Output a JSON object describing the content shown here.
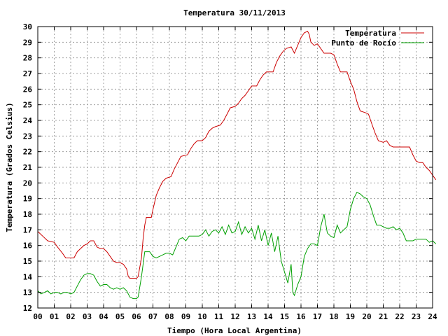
{
  "chart_data": {
    "type": "line",
    "title": "Temperatura 30/11/2013",
    "xlabel": "Tiempo (Hora Local Argentina)",
    "ylabel": "Temperatura (Grados Celsius)",
    "xlim": [
      0,
      24
    ],
    "ylim": [
      12,
      30
    ],
    "x_ticks": [
      "00",
      "01",
      "02",
      "03",
      "04",
      "05",
      "06",
      "07",
      "08",
      "09",
      "10",
      "11",
      "12",
      "13",
      "14",
      "15",
      "16",
      "17",
      "18",
      "19",
      "20",
      "21",
      "22",
      "23",
      "24"
    ],
    "y_ticks": [
      "12",
      "13",
      "14",
      "15",
      "16",
      "17",
      "18",
      "19",
      "20",
      "21",
      "22",
      "23",
      "24",
      "25",
      "26",
      "27",
      "28",
      "29",
      "30"
    ],
    "grid": true,
    "legend_position": "top-right",
    "series": [
      {
        "name": "Temperatura",
        "color": "#cc0000",
        "points": [
          [
            0.0,
            16.9
          ],
          [
            0.3,
            16.6
          ],
          [
            0.6,
            16.3
          ],
          [
            1.0,
            16.2
          ],
          [
            1.2,
            15.9
          ],
          [
            1.5,
            15.5
          ],
          [
            1.7,
            15.2
          ],
          [
            2.0,
            15.2
          ],
          [
            2.2,
            15.2
          ],
          [
            2.4,
            15.6
          ],
          [
            2.6,
            15.8
          ],
          [
            2.8,
            16.0
          ],
          [
            3.0,
            16.1
          ],
          [
            3.2,
            16.3
          ],
          [
            3.4,
            16.3
          ],
          [
            3.6,
            15.9
          ],
          [
            3.8,
            15.8
          ],
          [
            4.0,
            15.8
          ],
          [
            4.2,
            15.6
          ],
          [
            4.4,
            15.3
          ],
          [
            4.6,
            15.0
          ],
          [
            4.8,
            14.9
          ],
          [
            5.0,
            14.9
          ],
          [
            5.2,
            14.8
          ],
          [
            5.4,
            14.5
          ],
          [
            5.5,
            14.0
          ],
          [
            5.6,
            13.9
          ],
          [
            5.8,
            13.9
          ],
          [
            6.0,
            13.9
          ],
          [
            6.1,
            14.0
          ],
          [
            6.3,
            15.2
          ],
          [
            6.4,
            16.4
          ],
          [
            6.5,
            17.3
          ],
          [
            6.6,
            17.8
          ],
          [
            6.9,
            17.8
          ],
          [
            7.0,
            18.3
          ],
          [
            7.2,
            19.2
          ],
          [
            7.4,
            19.7
          ],
          [
            7.6,
            20.1
          ],
          [
            7.8,
            20.3
          ],
          [
            8.1,
            20.4
          ],
          [
            8.3,
            20.9
          ],
          [
            8.5,
            21.3
          ],
          [
            8.7,
            21.7
          ],
          [
            9.1,
            21.8
          ],
          [
            9.3,
            22.2
          ],
          [
            9.5,
            22.5
          ],
          [
            9.7,
            22.7
          ],
          [
            10.0,
            22.7
          ],
          [
            10.2,
            22.9
          ],
          [
            10.4,
            23.3
          ],
          [
            10.6,
            23.5
          ],
          [
            10.8,
            23.6
          ],
          [
            11.1,
            23.7
          ],
          [
            11.3,
            24.0
          ],
          [
            11.5,
            24.4
          ],
          [
            11.7,
            24.8
          ],
          [
            12.0,
            24.9
          ],
          [
            12.2,
            25.1
          ],
          [
            12.4,
            25.4
          ],
          [
            12.6,
            25.6
          ],
          [
            12.8,
            25.9
          ],
          [
            13.0,
            26.2
          ],
          [
            13.3,
            26.2
          ],
          [
            13.5,
            26.6
          ],
          [
            13.7,
            26.9
          ],
          [
            13.9,
            27.1
          ],
          [
            14.3,
            27.1
          ],
          [
            14.5,
            27.7
          ],
          [
            14.7,
            28.1
          ],
          [
            14.9,
            28.4
          ],
          [
            15.1,
            28.6
          ],
          [
            15.4,
            28.7
          ],
          [
            15.6,
            28.3
          ],
          [
            15.8,
            28.8
          ],
          [
            16.0,
            29.3
          ],
          [
            16.2,
            29.6
          ],
          [
            16.4,
            29.7
          ],
          [
            16.5,
            29.5
          ],
          [
            16.6,
            29.0
          ],
          [
            16.8,
            28.8
          ],
          [
            17.0,
            28.9
          ],
          [
            17.2,
            28.6
          ],
          [
            17.4,
            28.3
          ],
          [
            17.8,
            28.3
          ],
          [
            18.0,
            28.2
          ],
          [
            18.2,
            27.6
          ],
          [
            18.4,
            27.1
          ],
          [
            18.8,
            27.1
          ],
          [
            19.0,
            26.5
          ],
          [
            19.2,
            26.0
          ],
          [
            19.4,
            25.2
          ],
          [
            19.6,
            24.6
          ],
          [
            19.9,
            24.5
          ],
          [
            20.1,
            24.4
          ],
          [
            20.3,
            23.8
          ],
          [
            20.5,
            23.2
          ],
          [
            20.7,
            22.7
          ],
          [
            21.0,
            22.6
          ],
          [
            21.2,
            22.7
          ],
          [
            21.4,
            22.4
          ],
          [
            21.6,
            22.3
          ],
          [
            22.0,
            22.3
          ],
          [
            22.4,
            22.3
          ],
          [
            22.6,
            22.3
          ],
          [
            22.8,
            21.8
          ],
          [
            23.0,
            21.4
          ],
          [
            23.2,
            21.3
          ],
          [
            23.4,
            21.3
          ],
          [
            23.6,
            21.0
          ],
          [
            23.8,
            20.8
          ],
          [
            24.0,
            20.5
          ],
          [
            24.2,
            20.2
          ]
        ]
      },
      {
        "name": "Punto de Rocío",
        "color": "#00a000",
        "points": [
          [
            0.0,
            13.1
          ],
          [
            0.2,
            12.9
          ],
          [
            0.4,
            13.0
          ],
          [
            0.6,
            13.1
          ],
          [
            0.8,
            12.9
          ],
          [
            1.0,
            13.0
          ],
          [
            1.2,
            13.0
          ],
          [
            1.4,
            12.9
          ],
          [
            1.6,
            13.0
          ],
          [
            1.8,
            13.0
          ],
          [
            2.0,
            12.9
          ],
          [
            2.2,
            13.0
          ],
          [
            2.4,
            13.4
          ],
          [
            2.6,
            13.8
          ],
          [
            2.8,
            14.1
          ],
          [
            3.0,
            14.2
          ],
          [
            3.2,
            14.2
          ],
          [
            3.4,
            14.1
          ],
          [
            3.6,
            13.7
          ],
          [
            3.8,
            13.4
          ],
          [
            4.0,
            13.5
          ],
          [
            4.2,
            13.5
          ],
          [
            4.4,
            13.3
          ],
          [
            4.6,
            13.2
          ],
          [
            4.8,
            13.3
          ],
          [
            5.0,
            13.2
          ],
          [
            5.2,
            13.3
          ],
          [
            5.4,
            13.1
          ],
          [
            5.6,
            12.7
          ],
          [
            5.8,
            12.6
          ],
          [
            6.0,
            12.6
          ],
          [
            6.1,
            12.7
          ],
          [
            6.3,
            14.0
          ],
          [
            6.5,
            15.6
          ],
          [
            6.8,
            15.6
          ],
          [
            7.0,
            15.3
          ],
          [
            7.2,
            15.2
          ],
          [
            7.4,
            15.3
          ],
          [
            7.6,
            15.4
          ],
          [
            7.8,
            15.5
          ],
          [
            8.0,
            15.5
          ],
          [
            8.2,
            15.4
          ],
          [
            8.4,
            15.9
          ],
          [
            8.6,
            16.4
          ],
          [
            8.8,
            16.5
          ],
          [
            9.0,
            16.3
          ],
          [
            9.2,
            16.6
          ],
          [
            9.4,
            16.6
          ],
          [
            9.6,
            16.6
          ],
          [
            9.8,
            16.6
          ],
          [
            10.0,
            16.7
          ],
          [
            10.2,
            17.0
          ],
          [
            10.4,
            16.6
          ],
          [
            10.6,
            16.9
          ],
          [
            10.8,
            17.0
          ],
          [
            11.0,
            16.8
          ],
          [
            11.2,
            17.2
          ],
          [
            11.4,
            16.7
          ],
          [
            11.6,
            17.3
          ],
          [
            11.8,
            16.8
          ],
          [
            12.0,
            16.9
          ],
          [
            12.2,
            17.5
          ],
          [
            12.4,
            16.7
          ],
          [
            12.6,
            17.2
          ],
          [
            12.8,
            16.8
          ],
          [
            13.0,
            17.1
          ],
          [
            13.2,
            16.4
          ],
          [
            13.4,
            17.3
          ],
          [
            13.6,
            16.3
          ],
          [
            13.8,
            17.0
          ],
          [
            14.0,
            16.0
          ],
          [
            14.2,
            16.8
          ],
          [
            14.4,
            15.6
          ],
          [
            14.6,
            16.6
          ],
          [
            14.8,
            15.0
          ],
          [
            15.0,
            14.3
          ],
          [
            15.2,
            13.6
          ],
          [
            15.4,
            14.8
          ],
          [
            15.5,
            13.0
          ],
          [
            15.6,
            12.8
          ],
          [
            15.8,
            13.5
          ],
          [
            16.0,
            14.0
          ],
          [
            16.2,
            15.3
          ],
          [
            16.4,
            15.8
          ],
          [
            16.6,
            16.1
          ],
          [
            16.8,
            16.1
          ],
          [
            17.0,
            16.0
          ],
          [
            17.2,
            17.2
          ],
          [
            17.4,
            18.0
          ],
          [
            17.6,
            16.8
          ],
          [
            17.8,
            16.6
          ],
          [
            18.0,
            16.5
          ],
          [
            18.2,
            17.3
          ],
          [
            18.4,
            16.8
          ],
          [
            18.6,
            17.0
          ],
          [
            18.8,
            17.2
          ],
          [
            19.0,
            18.3
          ],
          [
            19.2,
            19.0
          ],
          [
            19.4,
            19.4
          ],
          [
            19.6,
            19.3
          ],
          [
            19.8,
            19.1
          ],
          [
            20.0,
            19.0
          ],
          [
            20.2,
            18.6
          ],
          [
            20.4,
            17.9
          ],
          [
            20.6,
            17.3
          ],
          [
            20.8,
            17.3
          ],
          [
            21.0,
            17.2
          ],
          [
            21.2,
            17.1
          ],
          [
            21.4,
            17.1
          ],
          [
            21.6,
            17.2
          ],
          [
            21.8,
            17.0
          ],
          [
            22.0,
            17.1
          ],
          [
            22.2,
            16.8
          ],
          [
            22.4,
            16.3
          ],
          [
            22.6,
            16.3
          ],
          [
            22.8,
            16.3
          ],
          [
            23.0,
            16.4
          ],
          [
            23.2,
            16.4
          ],
          [
            23.4,
            16.4
          ],
          [
            23.6,
            16.4
          ],
          [
            23.8,
            16.2
          ],
          [
            24.0,
            16.3
          ],
          [
            24.2,
            16.1
          ]
        ]
      }
    ]
  }
}
